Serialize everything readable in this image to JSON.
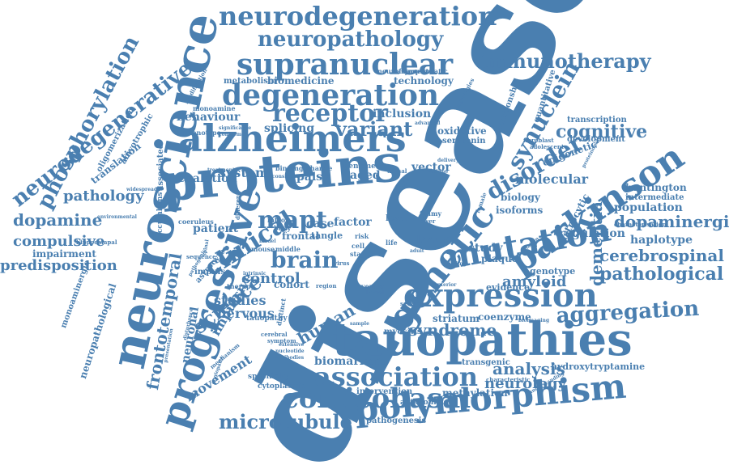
{
  "colors": {
    "word": "#4a7fb0",
    "background": "#ffffff"
  },
  "words": [
    {
      "text": "disease"
    },
    {
      "text": "proteins"
    },
    {
      "text": "alzheimers"
    },
    {
      "text": "tauopathies"
    },
    {
      "text": "neuroscience"
    },
    {
      "text": "progressive"
    },
    {
      "text": "polymorphism"
    },
    {
      "text": "expression"
    },
    {
      "text": "genetic"
    },
    {
      "text": "parkinson"
    },
    {
      "text": "mutation"
    },
    {
      "text": "degeneration"
    },
    {
      "text": "supranuclear"
    },
    {
      "text": "neurodegeneration"
    },
    {
      "text": "neuropathology"
    },
    {
      "text": "corticobasal"
    },
    {
      "text": "association"
    },
    {
      "text": "immunotherapy"
    },
    {
      "text": "microtubule"
    },
    {
      "text": "neurodegenerative"
    },
    {
      "text": "phosphorylation"
    },
    {
      "text": "aggregation"
    },
    {
      "text": "receptor"
    },
    {
      "text": "mapt"
    },
    {
      "text": "clinical"
    },
    {
      "text": "brain"
    },
    {
      "text": "synuclein"
    },
    {
      "text": "disorder"
    },
    {
      "text": "cognitive"
    },
    {
      "text": "pathological"
    },
    {
      "text": "dopaminergic"
    },
    {
      "text": "cerebrospinal"
    },
    {
      "text": "dementia"
    },
    {
      "text": "variant"
    },
    {
      "text": "syndrome"
    },
    {
      "text": "analysis"
    },
    {
      "text": "neurology"
    },
    {
      "text": "dopamine"
    },
    {
      "text": "compulsive"
    },
    {
      "text": "predisposition"
    },
    {
      "text": "pathology"
    },
    {
      "text": "frontotemporal"
    },
    {
      "text": "science"
    },
    {
      "text": "human"
    },
    {
      "text": "control"
    },
    {
      "text": "amyloid"
    },
    {
      "text": "movement"
    },
    {
      "text": "impulsive"
    },
    {
      "text": "neuronal"
    },
    {
      "text": "nervous"
    },
    {
      "text": "studies"
    },
    {
      "text": "biomarkers"
    },
    {
      "text": "hydroxytryptamine"
    },
    {
      "text": "population"
    },
    {
      "text": "haplotype"
    },
    {
      "text": "regulation"
    },
    {
      "text": "molecular"
    },
    {
      "text": "system"
    },
    {
      "text": "coalation"
    },
    {
      "text": "behaviour"
    },
    {
      "text": "splicing"
    },
    {
      "text": "inclusion"
    },
    {
      "text": "technology"
    },
    {
      "text": "biomedicine"
    },
    {
      "text": "metabolism"
    },
    {
      "text": "palsy"
    },
    {
      "text": "aged"
    },
    {
      "text": "vector"
    },
    {
      "text": "case"
    },
    {
      "text": "factor"
    },
    {
      "text": "locus"
    },
    {
      "text": "study"
    },
    {
      "text": "plaque"
    },
    {
      "text": "coenzyme"
    },
    {
      "text": "striatum"
    },
    {
      "text": "intervention"
    },
    {
      "text": "methylation"
    },
    {
      "text": "transgenic"
    },
    {
      "text": "genotype"
    },
    {
      "text": "evidence"
    },
    {
      "text": "huntington"
    },
    {
      "text": "intermediate"
    },
    {
      "text": "transcription"
    },
    {
      "text": "development"
    },
    {
      "text": "epigenetic"
    },
    {
      "text": "quantitative"
    },
    {
      "text": "relationship"
    },
    {
      "text": "oxidative"
    },
    {
      "text": "serotonin"
    },
    {
      "text": "isoforms"
    },
    {
      "text": "biology"
    },
    {
      "text": "astrocytic"
    },
    {
      "text": "patient"
    },
    {
      "text": "cohort"
    },
    {
      "text": "tangle"
    },
    {
      "text": "frontal"
    },
    {
      "text": "impairment"
    },
    {
      "text": "oligomerization"
    },
    {
      "text": "amyotrophic"
    },
    {
      "text": "translation"
    },
    {
      "text": "associated"
    },
    {
      "text": "impulse"
    },
    {
      "text": "astrocyte"
    },
    {
      "text": "pathogenesis"
    },
    {
      "text": "cytoplasmic"
    },
    {
      "text": "specificity"
    },
    {
      "text": "antagonist"
    },
    {
      "text": "myositis"
    },
    {
      "text": "neurofilament"
    },
    {
      "text": "asymptomatic"
    },
    {
      "text": "modification"
    },
    {
      "text": "monoamine"
    },
    {
      "text": "phenotype"
    },
    {
      "text": "significance"
    },
    {
      "text": "conformer"
    },
    {
      "text": "treatment"
    },
    {
      "text": "consistent"
    },
    {
      "text": "binding"
    },
    {
      "text": "change"
    },
    {
      "text": "genome"
    },
    {
      "text": "accumbens"
    },
    {
      "text": "coeruleus"
    },
    {
      "text": "sequence"
    },
    {
      "text": "therapy"
    },
    {
      "text": "mechanism"
    },
    {
      "text": "extensive"
    },
    {
      "text": "nucleotide"
    },
    {
      "text": "antibodies"
    },
    {
      "text": "symptom"
    },
    {
      "text": "cerebral"
    },
    {
      "text": "tauopathy"
    },
    {
      "text": "monoaminergic"
    },
    {
      "text": "neuropathological"
    },
    {
      "text": "hippocampal"
    },
    {
      "text": "widespread"
    },
    {
      "text": "strategies"
    },
    {
      "text": "advanced"
    },
    {
      "text": "fibroblast"
    },
    {
      "text": "adolescent"
    },
    {
      "text": "proteinopathy"
    },
    {
      "text": "characterisation"
    },
    {
      "text": "variation"
    },
    {
      "text": "bioimaging"
    },
    {
      "text": "characteristic"
    },
    {
      "text": "understanding"
    },
    {
      "text": "body"
    },
    {
      "text": "intron"
    },
    {
      "text": "model"
    },
    {
      "text": "middle"
    },
    {
      "text": "mouse"
    },
    {
      "text": "region"
    },
    {
      "text": "ventral"
    },
    {
      "text": "lateral"
    },
    {
      "text": "sample"
    },
    {
      "text": "several"
    },
    {
      "text": "cell"
    },
    {
      "text": "stage"
    },
    {
      "text": "virus"
    },
    {
      "text": "adult"
    },
    {
      "text": "risk"
    },
    {
      "text": "life"
    },
    {
      "text": "level"
    },
    {
      "text": "foamy"
    },
    {
      "text": "single"
    },
    {
      "text": "delivery"
    },
    {
      "text": "vaccine"
    },
    {
      "text": "female"
    },
    {
      "text": "lower"
    },
    {
      "text": "finding"
    },
    {
      "text": "anterior"
    },
    {
      "text": "dorsal"
    },
    {
      "text": "different"
    },
    {
      "text": "distinct"
    },
    {
      "text": "intrinsic"
    },
    {
      "text": "pathogenic"
    },
    {
      "text": "spinal"
    },
    {
      "text": "environmental"
    },
    {
      "text": "disturbance"
    },
    {
      "text": "angiopathy"
    },
    {
      "text": "presentation"
    }
  ]
}
